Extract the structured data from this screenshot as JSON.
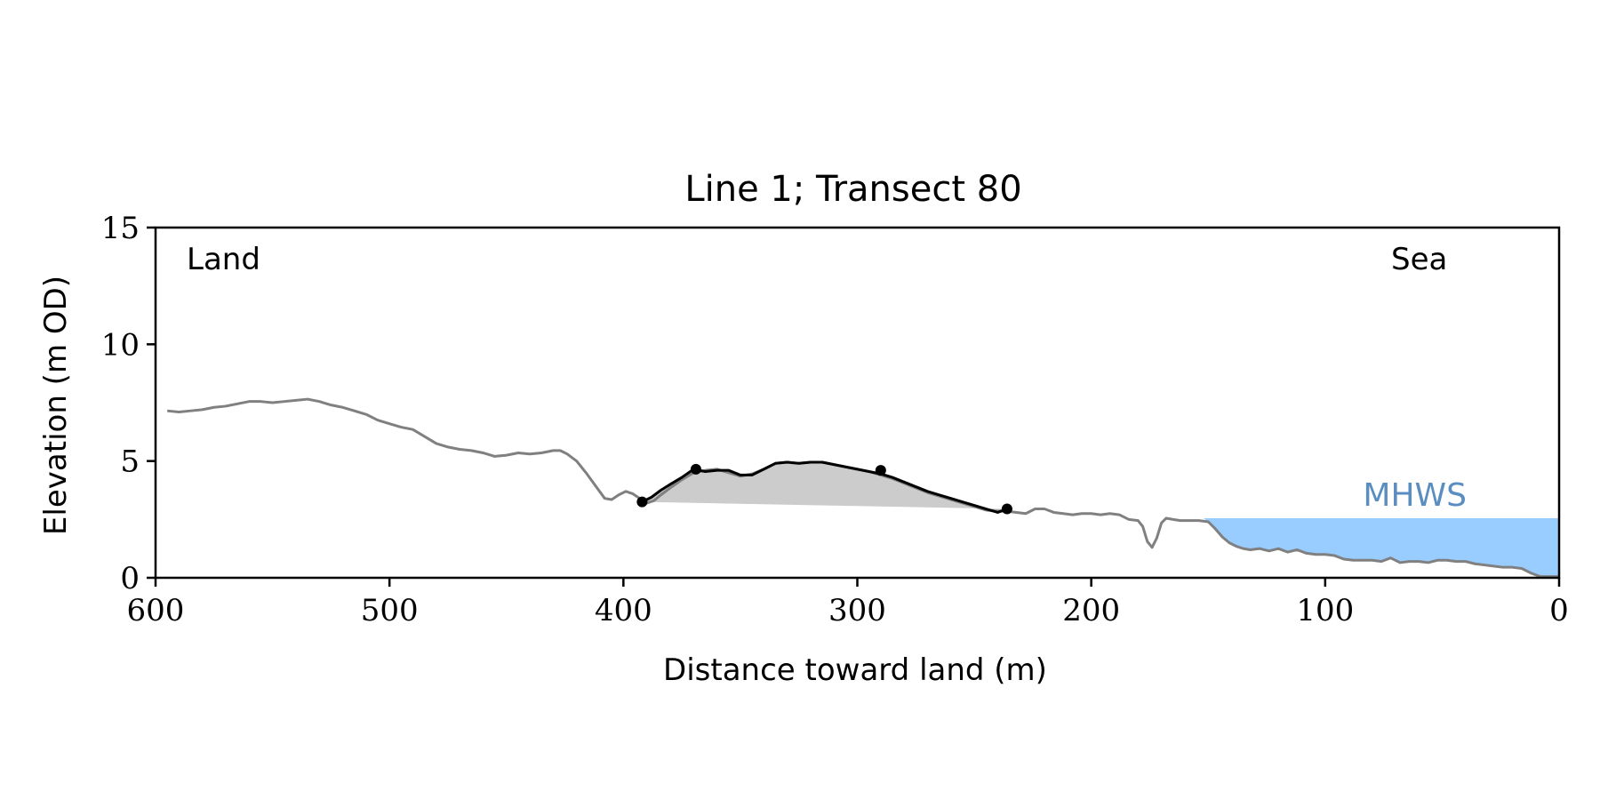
{
  "chart_data": {
    "type": "line",
    "title": "Line 1; Transect 80",
    "xlabel": "Distance toward land (m)",
    "ylabel": "Elevation (m OD)",
    "xlim": [
      600,
      0
    ],
    "ylim": [
      0,
      15
    ],
    "x_reversed": true,
    "xticks": [
      600,
      500,
      400,
      300,
      200,
      100,
      0
    ],
    "yticks": [
      0,
      5,
      10,
      15
    ],
    "grid": false,
    "annotations": {
      "land": "Land",
      "sea": "Sea",
      "mhws": "MHWS"
    },
    "mhws_level": 2.55,
    "colors": {
      "profile": "#808080",
      "dune_crest": "#000000",
      "dune_fill": "#cccccc",
      "water": "#99ccff",
      "mhws_label": "#5b8ec0"
    },
    "series": [
      {
        "role": "profile",
        "x": [
          595,
          590,
          585,
          580,
          575,
          570,
          565,
          560,
          555,
          550,
          545,
          540,
          535,
          530,
          525,
          520,
          515,
          510,
          505,
          500,
          495,
          490,
          485,
          480,
          475,
          470,
          465,
          460,
          455,
          450,
          445,
          440,
          435,
          430,
          427,
          424,
          420,
          416,
          412,
          408,
          405,
          402,
          399,
          396,
          393,
          390,
          387,
          384,
          380,
          375,
          370,
          365,
          360,
          355,
          350,
          345,
          340,
          335,
          330,
          325,
          320,
          315,
          310,
          305,
          300,
          295,
          290,
          285,
          280,
          275,
          270,
          265,
          260,
          255,
          250,
          245,
          240,
          236,
          232,
          228,
          224,
          220,
          216,
          212,
          208,
          204,
          200,
          196,
          192,
          188,
          184,
          180,
          178,
          176,
          174,
          172,
          170,
          168,
          165,
          162,
          158,
          154,
          150,
          147,
          144,
          141,
          138,
          135,
          132,
          128,
          124,
          120,
          116,
          112,
          108,
          104,
          100,
          96,
          92,
          88,
          84,
          80,
          76,
          72,
          68,
          64,
          60,
          56,
          52,
          48,
          44,
          40,
          36,
          32,
          28,
          24,
          20,
          16,
          12,
          8,
          4,
          0
        ],
        "y": [
          7.15,
          7.1,
          7.15,
          7.2,
          7.3,
          7.35,
          7.45,
          7.55,
          7.55,
          7.5,
          7.55,
          7.6,
          7.65,
          7.55,
          7.4,
          7.3,
          7.15,
          7.0,
          6.75,
          6.6,
          6.45,
          6.35,
          6.05,
          5.75,
          5.6,
          5.5,
          5.45,
          5.35,
          5.2,
          5.25,
          5.35,
          5.3,
          5.35,
          5.45,
          5.45,
          5.3,
          5.0,
          4.5,
          3.95,
          3.4,
          3.35,
          3.55,
          3.7,
          3.6,
          3.4,
          3.2,
          3.3,
          3.55,
          3.85,
          4.2,
          4.5,
          4.6,
          4.65,
          4.5,
          4.35,
          4.45,
          4.65,
          4.9,
          4.95,
          4.9,
          4.95,
          4.95,
          4.85,
          4.75,
          4.65,
          4.55,
          4.4,
          4.25,
          4.05,
          3.85,
          3.65,
          3.5,
          3.35,
          3.2,
          3.05,
          2.9,
          2.85,
          2.85,
          2.8,
          2.75,
          2.95,
          2.95,
          2.8,
          2.75,
          2.7,
          2.75,
          2.75,
          2.7,
          2.75,
          2.7,
          2.5,
          2.45,
          2.2,
          1.55,
          1.3,
          1.7,
          2.35,
          2.55,
          2.5,
          2.45,
          2.45,
          2.45,
          2.4,
          2.1,
          1.75,
          1.5,
          1.35,
          1.25,
          1.2,
          1.25,
          1.15,
          1.25,
          1.1,
          1.2,
          1.05,
          1.0,
          1.0,
          0.95,
          0.8,
          0.75,
          0.75,
          0.75,
          0.7,
          0.85,
          0.65,
          0.7,
          0.7,
          0.65,
          0.75,
          0.75,
          0.7,
          0.7,
          0.6,
          0.55,
          0.5,
          0.45,
          0.45,
          0.4,
          0.2,
          0.05,
          0.05,
          0.05
        ]
      },
      {
        "role": "dune",
        "x": [
          392,
          388,
          384,
          380,
          375,
          370,
          365,
          360,
          355,
          350,
          345,
          340,
          335,
          330,
          325,
          320,
          315,
          310,
          305,
          300,
          295,
          290,
          285,
          280,
          275,
          270,
          265,
          260,
          255,
          250,
          245,
          240,
          236
        ],
        "y": [
          3.25,
          3.45,
          3.75,
          4.0,
          4.3,
          4.65,
          4.55,
          4.6,
          4.6,
          4.4,
          4.4,
          4.65,
          4.9,
          4.95,
          4.9,
          4.95,
          4.95,
          4.85,
          4.75,
          4.65,
          4.55,
          4.45,
          4.3,
          4.1,
          3.9,
          3.7,
          3.55,
          3.4,
          3.25,
          3.1,
          2.95,
          2.8,
          2.95
        ]
      }
    ],
    "dune_points": [
      {
        "x": 392,
        "y": 3.25
      },
      {
        "x": 369,
        "y": 4.65
      },
      {
        "x": 290,
        "y": 4.6
      },
      {
        "x": 236,
        "y": 2.95
      }
    ]
  }
}
